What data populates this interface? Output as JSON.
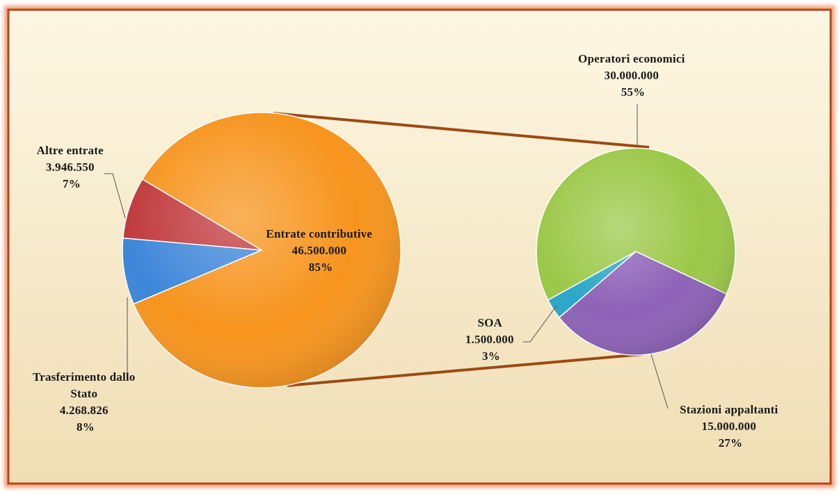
{
  "chart_data": [
    {
      "type": "pie",
      "series": [
        {
          "name": "Entrate contributive",
          "value": 46500000,
          "value_label": "46.500.000",
          "pct_label": "85%",
          "color": "#f7941d"
        },
        {
          "name": "Altre entrate",
          "value": 3946550,
          "value_label": "3.946.550",
          "pct_label": "7%",
          "color": "#c0393b"
        },
        {
          "name": "Trasferimento dallo Stato",
          "value": 4268826,
          "value_label": "4.268.826",
          "pct_label": "8%",
          "color": "#3d86d9"
        }
      ]
    },
    {
      "type": "pie",
      "series": [
        {
          "name": "Operatori economici",
          "value": 30000000,
          "value_label": "30.000.000",
          "pct_label": "55%",
          "color": "#9bc848"
        },
        {
          "name": "Stazioni appaltanti",
          "value": 15000000,
          "value_label": "15.000.000",
          "pct_label": "27%",
          "color": "#8e62b8"
        },
        {
          "name": "SOA",
          "value": 1500000,
          "value_label": "1.500.000",
          "pct_label": "3%",
          "color": "#2aa6c9"
        }
      ]
    }
  ],
  "colors": {
    "frame_border": "#b5451b",
    "frame_fill_top": "#fdf7e3",
    "frame_fill_bottom": "#f0ddb4",
    "connector": "#9c4a12",
    "leader": "#555555"
  }
}
